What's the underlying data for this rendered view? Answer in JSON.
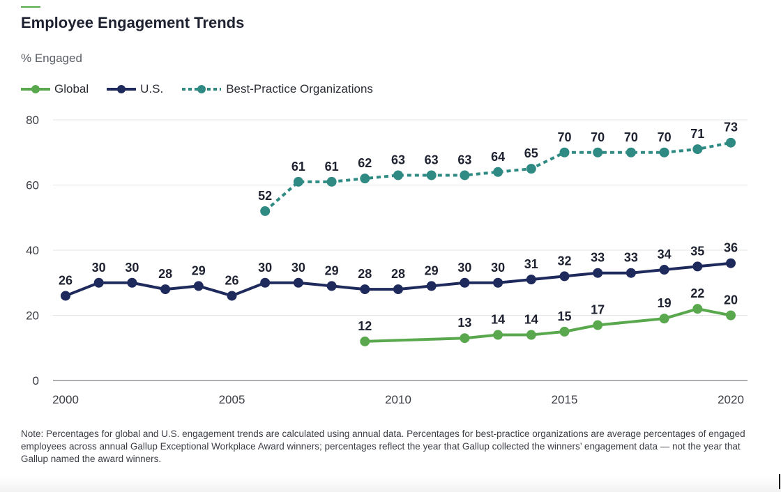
{
  "header": {
    "title": "Employee Engagement Trends",
    "subtitle": "% Engaged"
  },
  "legend": [
    {
      "label": "Global",
      "color": "#5aa84e",
      "style": "solid"
    },
    {
      "label": "U.S.",
      "color": "#1f2a5c",
      "style": "solid"
    },
    {
      "label": "Best-Practice Organizations",
      "color": "#2e8a82",
      "style": "dashed"
    }
  ],
  "note": "Note: Percentages for global and U.S. engagement trends are calculated using annual data. Percentages for best-practice organizations are average percentages of engaged employees across annual Gallup Exceptional Workplace Award winners; percentages reflect the year that Gallup collected the winners’ engagement data — not the year that Gallup named the award winners.",
  "chart_data": {
    "type": "line",
    "title": "Employee Engagement Trends",
    "ylabel": "% Engaged",
    "xlim": [
      2000,
      2020
    ],
    "ylim": [
      0,
      80
    ],
    "x_ticks": [
      2000,
      2005,
      2010,
      2015,
      2020
    ],
    "y_ticks": [
      0,
      20,
      40,
      60,
      80
    ],
    "grid": "horizontal",
    "legend_position": "top-left",
    "series": [
      {
        "name": "Best-Practice Organizations",
        "color": "#2e8a82",
        "dashed": true,
        "x": [
          2006,
          2007,
          2008,
          2009,
          2010,
          2011,
          2012,
          2013,
          2014,
          2015,
          2016,
          2017,
          2018,
          2019,
          2020
        ],
        "values": [
          52,
          61,
          61,
          62,
          63,
          63,
          63,
          64,
          65,
          70,
          70,
          70,
          70,
          71,
          73
        ]
      },
      {
        "name": "U.S.",
        "color": "#1f2a5c",
        "dashed": false,
        "x": [
          2000,
          2001,
          2002,
          2003,
          2004,
          2005,
          2006,
          2007,
          2008,
          2009,
          2010,
          2011,
          2012,
          2013,
          2014,
          2015,
          2016,
          2017,
          2018,
          2019,
          2020
        ],
        "values": [
          26,
          30,
          30,
          28,
          29,
          26,
          30,
          30,
          29,
          28,
          28,
          29,
          30,
          30,
          31,
          32,
          33,
          33,
          34,
          35,
          36
        ]
      },
      {
        "name": "Global",
        "color": "#5aa84e",
        "dashed": false,
        "x": [
          2009,
          2012,
          2013,
          2014,
          2015,
          2016,
          2018,
          2019,
          2020
        ],
        "values": [
          12,
          13,
          14,
          14,
          15,
          17,
          19,
          22,
          20
        ]
      }
    ]
  }
}
